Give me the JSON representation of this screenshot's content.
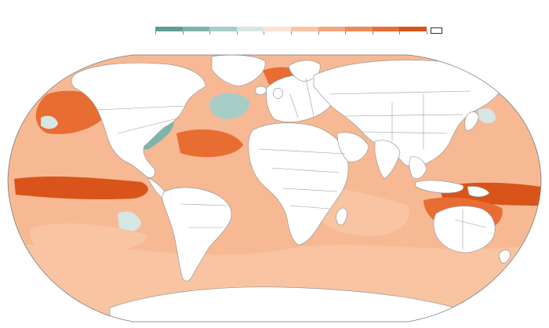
{
  "legend": {
    "bins": [
      {
        "color": "#5e9e95"
      },
      {
        "color": "#7fb4ac"
      },
      {
        "color": "#a7cdc7"
      },
      {
        "color": "#d6e6e3"
      },
      {
        "color": "#fbe3d3"
      },
      {
        "color": "#f8c4a2"
      },
      {
        "color": "#f4a77b"
      },
      {
        "color": "#ee8a55"
      },
      {
        "color": "#e86d32"
      },
      {
        "color": "#d9541a"
      }
    ],
    "no_data_color": "#ffffff"
  },
  "map": {
    "projection": "robinson",
    "ocean_base_color": "#f7b994",
    "land_color": "#ffffff",
    "border_color": "#9a9a9a",
    "regions": {
      "ocean-base": {
        "anomaly_bin": 6
      },
      "warm-pacific-band": {
        "anomaly_bin": 9
      },
      "warm-north-pacific": {
        "anomaly_bin": 8
      },
      "warm-north-atlantic": {
        "anomaly_bin": 8
      },
      "warm-australia-sea": {
        "anomaly_bin": 8
      },
      "cool-north-atlantic": {
        "anomaly_bin": 2
      },
      "cool-us-east-coast": {
        "anomaly_bin": 1
      },
      "cool-north-pacific": {
        "anomaly_bin": 3
      },
      "cool-south-pacific": {
        "anomaly_bin": 3
      },
      "light-southern-ocean": {
        "anomaly_bin": 5
      },
      "light-south-indian": {
        "anomaly_bin": 5
      }
    }
  }
}
